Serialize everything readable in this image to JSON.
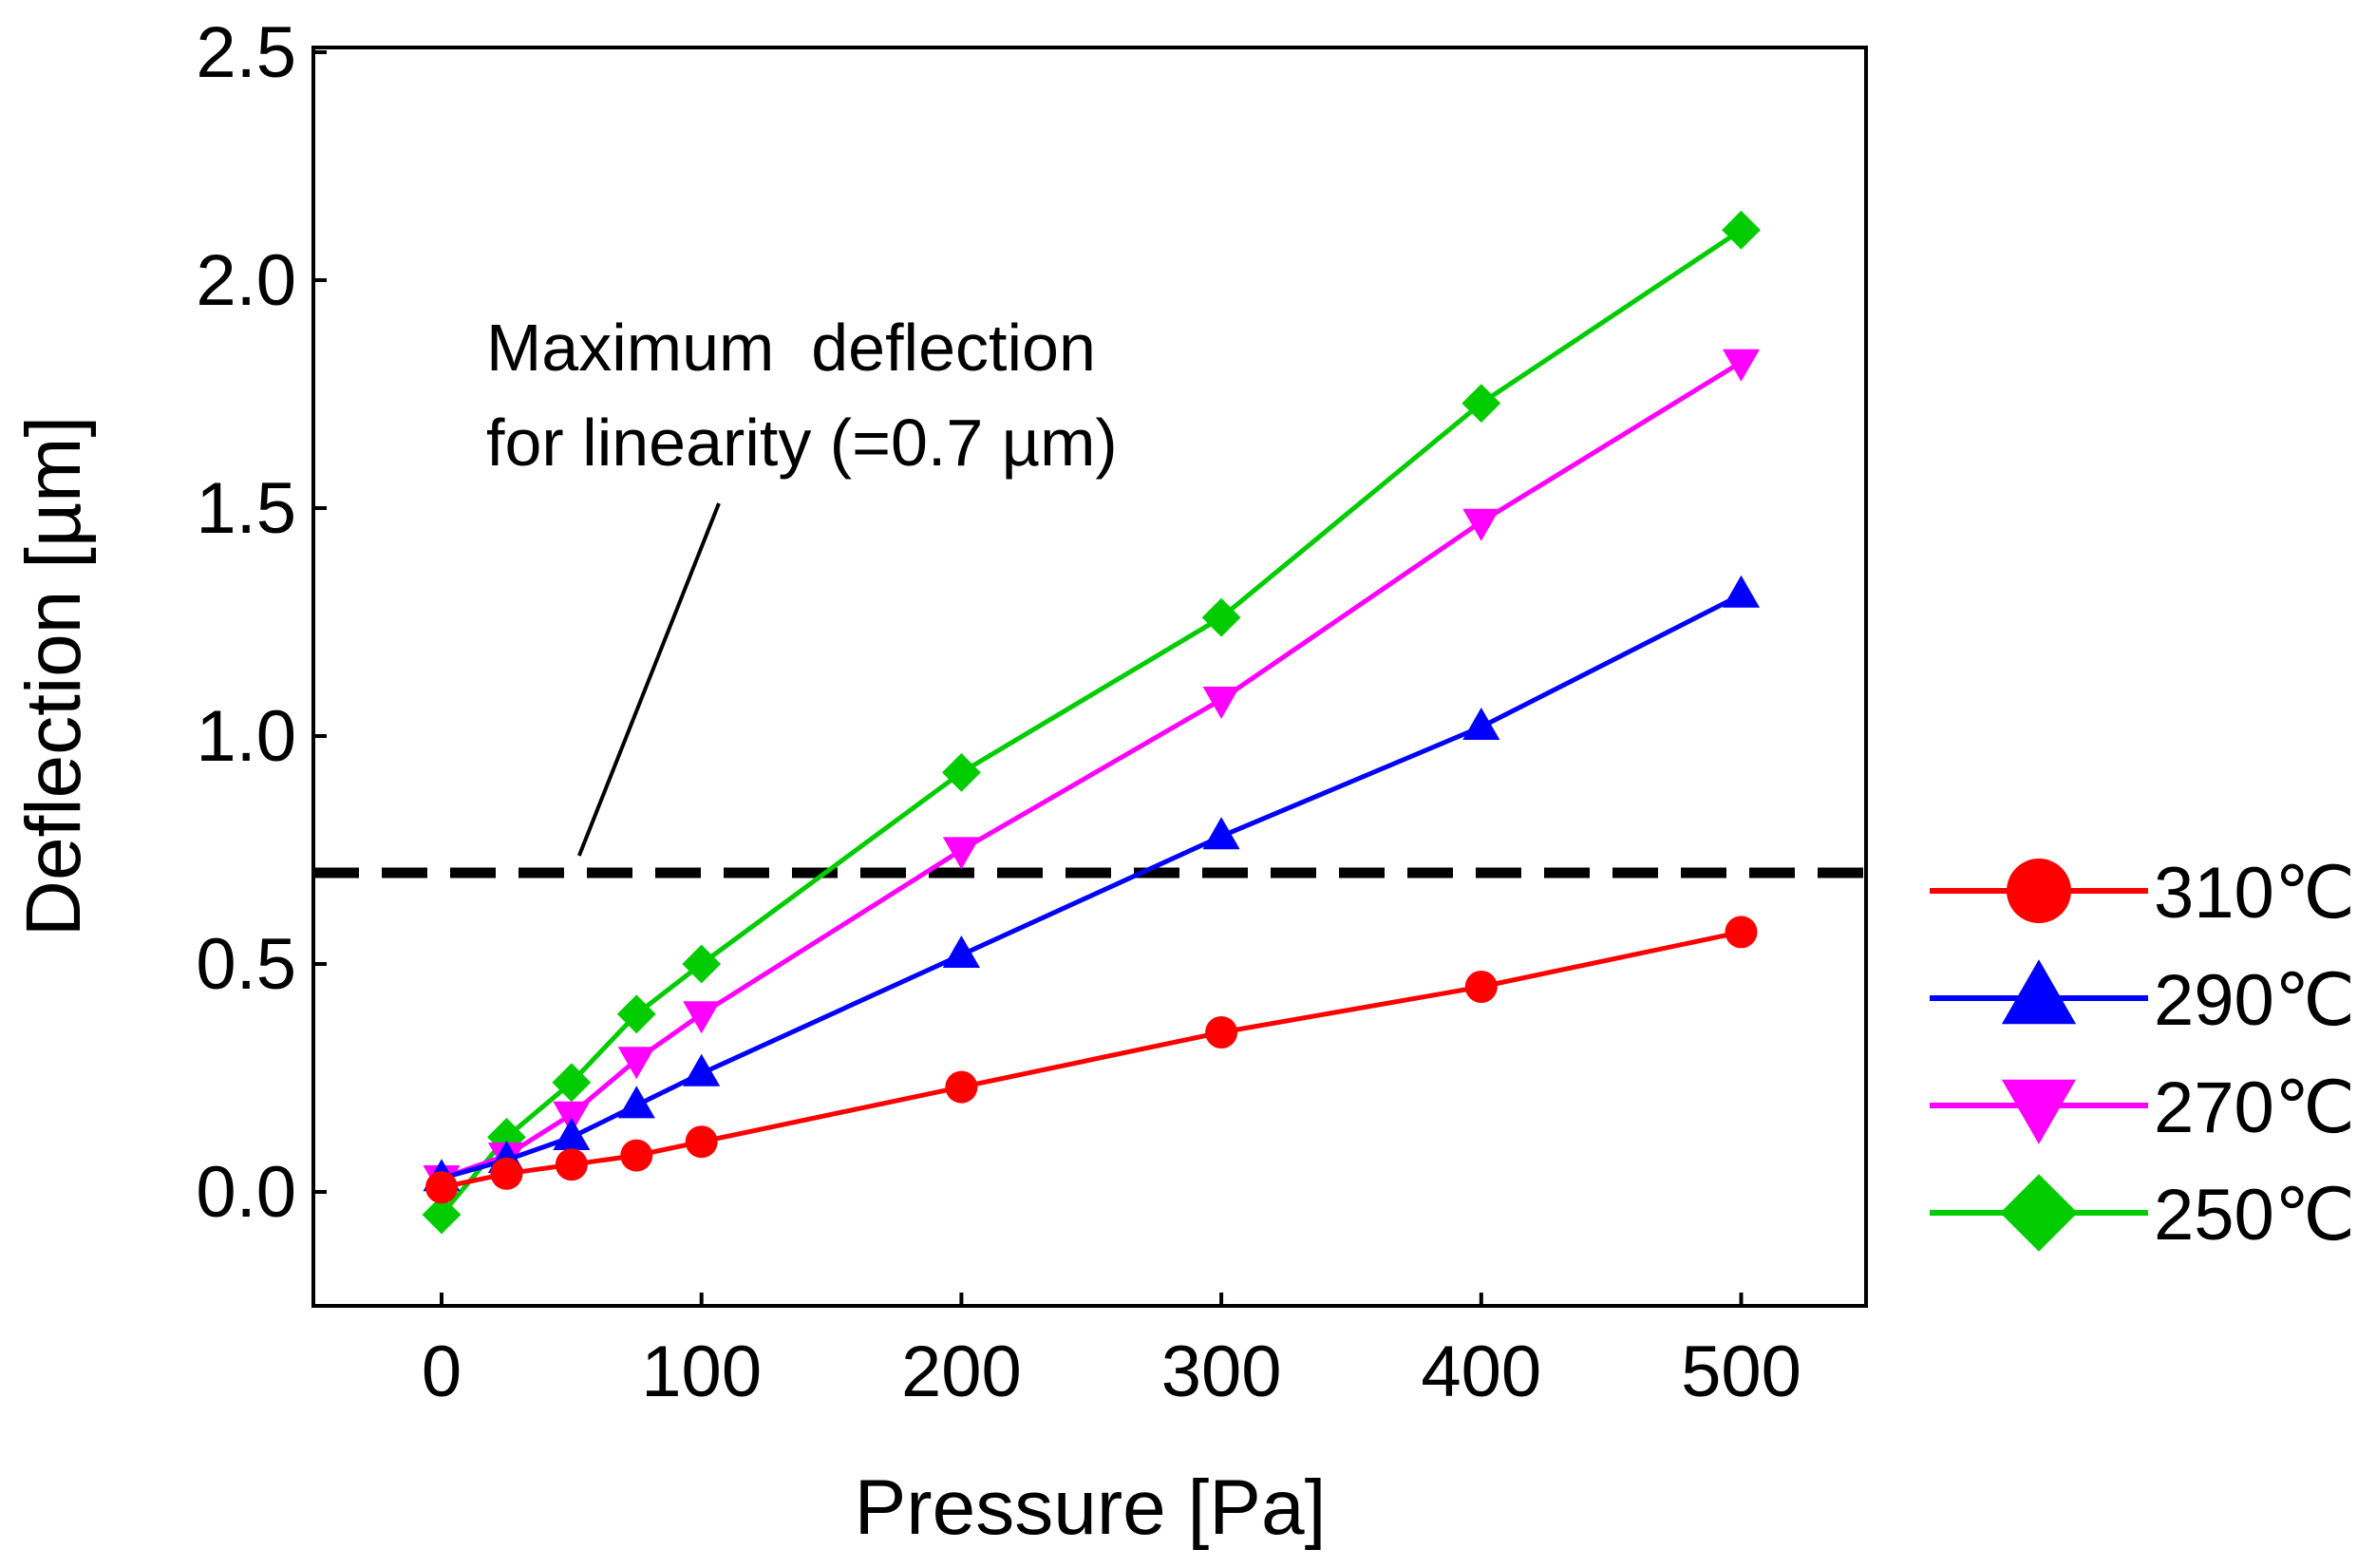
{
  "chart_data": {
    "type": "line",
    "title": "",
    "xlabel": "Pressure [Pa]",
    "ylabel": "Deflection [µm]",
    "xlim": [
      -50,
      550
    ],
    "ylim": [
      -0.25,
      2.5
    ],
    "xticks": [
      0,
      100,
      200,
      300,
      400,
      500
    ],
    "xtick_labels": [
      "0",
      "100",
      "200",
      "300",
      "400",
      "500"
    ],
    "yticks": [
      0.0,
      0.5,
      1.0,
      1.5,
      2.0,
      2.5
    ],
    "ytick_labels": [
      "0.0",
      "0.5",
      "1.0",
      "1.5",
      "2.0",
      "2.5"
    ],
    "grid": false,
    "legend_position": "right",
    "x": [
      0,
      25,
      50,
      75,
      100,
      200,
      300,
      400,
      500
    ],
    "series": [
      {
        "name": "310℃",
        "color": "#ff0000",
        "marker": "circle",
        "values": [
          0.01,
          0.04,
          0.06,
          0.08,
          0.11,
          0.23,
          0.35,
          0.45,
          0.57
        ]
      },
      {
        "name": "290℃",
        "color": "#0000ff",
        "marker": "triangle-up",
        "values": [
          0.03,
          0.07,
          0.12,
          0.19,
          0.26,
          0.52,
          0.78,
          1.02,
          1.31
        ]
      },
      {
        "name": "270℃",
        "color": "#ff00ff",
        "marker": "triangle-down",
        "values": [
          0.03,
          0.08,
          0.17,
          0.29,
          0.39,
          0.75,
          1.08,
          1.47,
          1.82
        ]
      },
      {
        "name": "250℃",
        "color": "#00cc00",
        "marker": "diamond",
        "values": [
          -0.05,
          0.12,
          0.24,
          0.39,
          0.5,
          0.92,
          1.26,
          1.73,
          2.11
        ]
      }
    ],
    "reference_line": {
      "y": 0.7,
      "style": "dashed",
      "color": "#000000"
    },
    "annotation": {
      "lines": [
        "Maximum  deflection",
        "for linearity (=0.7 µm)"
      ],
      "points_to": {
        "x": 50,
        "y": 0.7
      }
    }
  }
}
